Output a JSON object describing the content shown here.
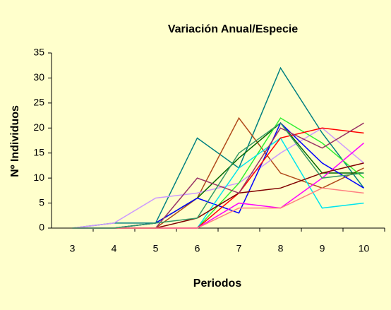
{
  "chart_data": {
    "type": "line",
    "title": "Variación Anual/Especie",
    "xlabel": "Periodos",
    "ylabel": "Nº Individuos",
    "categories": [
      "3",
      "4",
      "5",
      "6",
      "7",
      "8",
      "9",
      "10"
    ],
    "ylim": [
      0,
      35
    ],
    "yticks": [
      0,
      5,
      10,
      15,
      20,
      25,
      30,
      35
    ],
    "grid": false,
    "series": [
      {
        "color": "#008080",
        "values": [
          0,
          1,
          1,
          18,
          12,
          32,
          19,
          8
        ]
      },
      {
        "color": "#b04a1a",
        "values": [
          0,
          0,
          0,
          6,
          22,
          11,
          8,
          12
        ]
      },
      {
        "color": "#cc99ff",
        "values": [
          0,
          1,
          6,
          7,
          9,
          15,
          20,
          13
        ]
      },
      {
        "color": "#006600",
        "values": [
          0,
          0,
          1,
          6,
          14,
          21,
          11,
          11
        ]
      },
      {
        "color": "#33ee33",
        "values": [
          0,
          0,
          0,
          0,
          9,
          22,
          17,
          10
        ]
      },
      {
        "color": "#0000ff",
        "values": [
          0,
          0,
          1,
          6,
          3,
          21,
          13,
          8
        ]
      },
      {
        "color": "#00e5ee",
        "values": [
          0,
          0,
          0,
          0,
          12,
          18,
          4,
          5
        ]
      },
      {
        "color": "#ff0000",
        "values": [
          0,
          0,
          0,
          0,
          7,
          18,
          20,
          19
        ]
      },
      {
        "color": "#ff00ff",
        "values": [
          0,
          0,
          0,
          0,
          5,
          4,
          10,
          17
        ]
      },
      {
        "color": "#800000",
        "values": [
          0,
          0,
          0,
          2,
          7,
          8,
          11,
          13
        ]
      },
      {
        "color": "#993366",
        "values": [
          0,
          0,
          0,
          10,
          7,
          20,
          16,
          21
        ]
      },
      {
        "color": "#ff8080",
        "values": [
          0,
          0,
          0,
          0,
          4,
          4,
          8,
          7
        ]
      },
      {
        "color": "#339966",
        "values": [
          0,
          0,
          1,
          2,
          15,
          21,
          10,
          11
        ]
      }
    ]
  }
}
